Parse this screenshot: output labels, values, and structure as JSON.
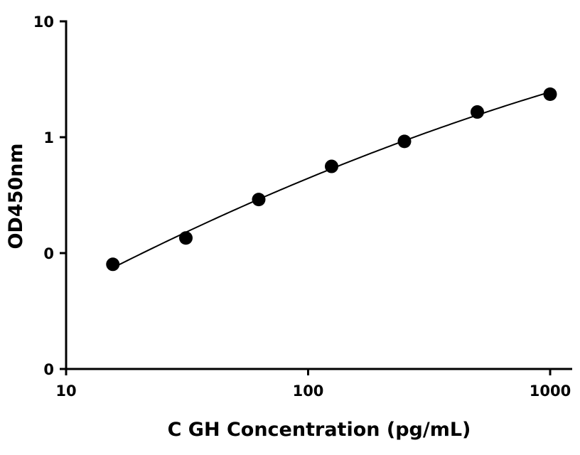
{
  "chart_data": {
    "type": "scatter",
    "title": "",
    "xlabel": "C GH Concentration (pg/mL)",
    "ylabel": "OD450nm",
    "x_scale": "log",
    "y_scale": "log",
    "xlim": [
      10,
      1000
    ],
    "ylim": [
      0.01,
      10
    ],
    "x_ticks": [
      10,
      100,
      1000
    ],
    "x_tick_labels": [
      "10",
      "100",
      "1000"
    ],
    "y_ticks": [
      0.01,
      0.1,
      1,
      10
    ],
    "y_tick_labels": [
      "0",
      "0",
      "1",
      "10"
    ],
    "grid": false,
    "legend": "none",
    "series": [
      {
        "x": [
          15.6,
          31.25,
          62.5,
          125,
          250,
          500,
          1000
        ],
        "y": [
          0.08,
          0.135,
          0.29,
          0.56,
          0.92,
          1.65,
          2.35
        ],
        "marker": "circle",
        "fit_curve": true
      }
    ],
    "colors": {
      "points": "#000000",
      "curve": "#000000",
      "axes": "#000000"
    }
  }
}
